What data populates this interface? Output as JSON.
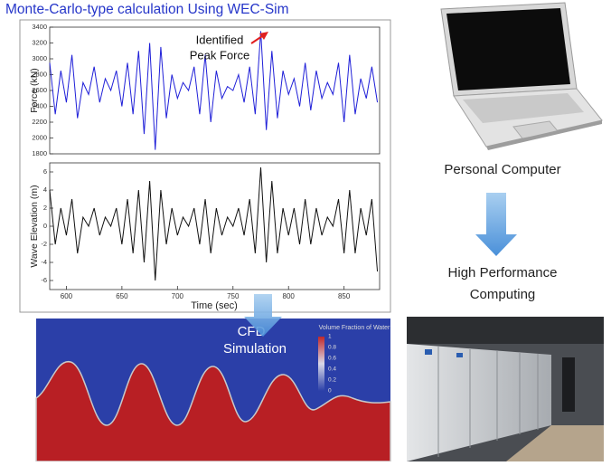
{
  "header": {
    "title": "Monte-Carlo-type calculation Using WEC-Sim"
  },
  "chart_data": [
    {
      "type": "line",
      "ylabel": "Force (kN)",
      "color": "#1f1fd8",
      "annotation": [
        "Identified",
        "Peak Force"
      ],
      "x": [
        585,
        590,
        595,
        600,
        605,
        610,
        615,
        620,
        625,
        630,
        635,
        640,
        645,
        650,
        655,
        660,
        665,
        670,
        675,
        680,
        685,
        690,
        695,
        700,
        705,
        710,
        715,
        720,
        725,
        730,
        735,
        740,
        745,
        750,
        755,
        760,
        765,
        770,
        775,
        780,
        785,
        790,
        795,
        800,
        805,
        810,
        815,
        820,
        825,
        830,
        835,
        840,
        845,
        850,
        855,
        860,
        865,
        870,
        875,
        880
      ],
      "values": [
        2950,
        2300,
        2850,
        2450,
        3050,
        2250,
        2700,
        2550,
        2900,
        2450,
        2750,
        2600,
        2850,
        2400,
        2950,
        2300,
        3100,
        2050,
        3200,
        1850,
        3150,
        2250,
        2800,
        2500,
        2700,
        2600,
        2900,
        2300,
        3050,
        2200,
        2850,
        2500,
        2650,
        2600,
        2800,
        2450,
        2900,
        2300,
        3350,
        2100,
        3100,
        2250,
        2850,
        2550,
        2750,
        2400,
        2950,
        2350,
        2850,
        2500,
        2700,
        2550,
        2950,
        2200,
        3050,
        2300,
        2750,
        2500,
        2900,
        2450
      ],
      "xlim": [
        585,
        882
      ],
      "ylim": [
        1800,
        3400
      ],
      "yticks": [
        1800,
        2000,
        2200,
        2400,
        2600,
        2800,
        3000,
        3200,
        3400
      ]
    },
    {
      "type": "line",
      "ylabel": "Wave Elevation (m)",
      "xlabel": "Time (sec)",
      "color": "#111111",
      "x": [
        585,
        590,
        595,
        600,
        605,
        610,
        615,
        620,
        625,
        630,
        635,
        640,
        645,
        650,
        655,
        660,
        665,
        670,
        675,
        680,
        685,
        690,
        695,
        700,
        705,
        710,
        715,
        720,
        725,
        730,
        735,
        740,
        745,
        750,
        755,
        760,
        765,
        770,
        775,
        780,
        785,
        790,
        795,
        800,
        805,
        810,
        815,
        820,
        825,
        830,
        835,
        840,
        845,
        850,
        855,
        860,
        865,
        870,
        875,
        880
      ],
      "values": [
        4,
        -2,
        2,
        -1,
        3,
        -3,
        1,
        0,
        2,
        -1,
        1,
        0,
        2,
        -2,
        3,
        -3,
        4,
        -4,
        5,
        -6,
        4,
        -2,
        2,
        -1,
        1,
        0,
        2,
        -2,
        3,
        -3,
        2,
        -1,
        1,
        0,
        2,
        -1,
        3,
        -3,
        6.5,
        -4,
        5,
        -3,
        2,
        -1,
        2,
        -2,
        3,
        -2,
        2,
        -1,
        1,
        0,
        3,
        -3,
        4,
        -3,
        2,
        -1,
        3,
        -5
      ],
      "xlim": [
        585,
        882
      ],
      "ylim": [
        -7,
        7
      ],
      "yticks": [
        -6,
        -4,
        -2,
        0,
        2,
        4,
        6
      ],
      "xticks": [
        600,
        650,
        700,
        750,
        800,
        850
      ]
    }
  ],
  "cfd": {
    "label": [
      "CFD",
      "Simulation"
    ],
    "colorbar_title": "Volume Fraction of Water",
    "colorbar_ticks": [
      "1",
      "0.8",
      "0.6",
      "0.4",
      "0.2",
      "0"
    ]
  },
  "right": {
    "pc_label": "Personal Computer",
    "hpc_label": [
      "High Performance",
      "Computing"
    ]
  }
}
